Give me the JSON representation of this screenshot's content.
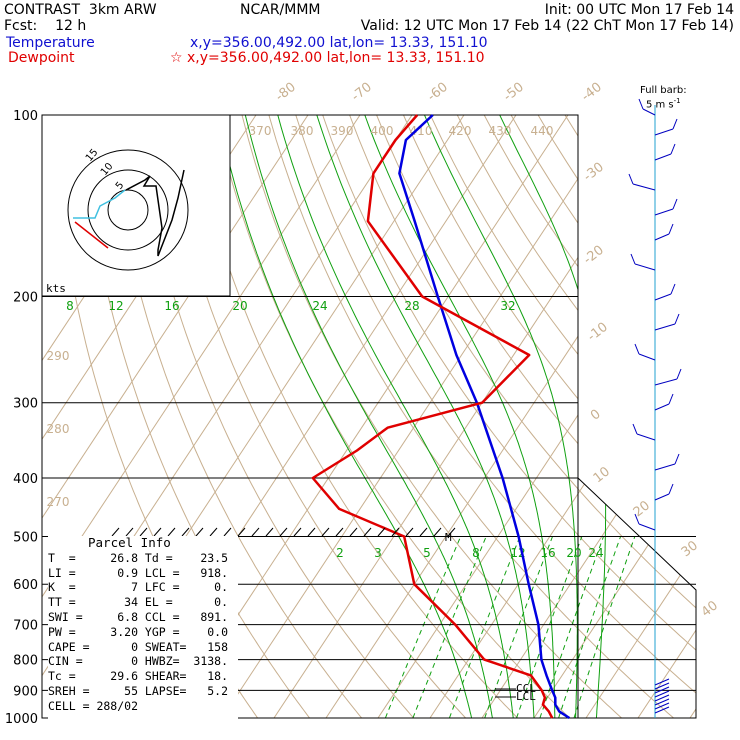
{
  "header": {
    "product": "CONTRAST",
    "model": "3km ARW",
    "org": "NCAR/MMM",
    "init": "Init: 00 UTC Mon 17 Feb 14",
    "fcst_label": "Fcst:",
    "fcst_value": "12 h",
    "valid": "Valid: 12 UTC Mon 17 Feb 14 (22 ChT Mon 17 Feb 14)",
    "temp_label": "Temperature",
    "temp_loc": "x,y=356.00,492.00    lat,lon= 13.33, 151.10",
    "dew_label": "Dewpoint",
    "dew_loc": "x,y=356.00,492.00    lat,lon= 13.33, 151.10"
  },
  "barb_legend": {
    "line1": "Full barb:",
    "line2": "5 m s"
  },
  "hodograph": {
    "units": "kts",
    "ring_labels": [
      "15",
      "10",
      "5"
    ]
  },
  "mixing_ratio_labels_top": [
    "8",
    "12",
    "16",
    "20",
    "24",
    "28",
    "32"
  ],
  "mixing_ratio_labels_mid": [
    "2",
    "3",
    "5",
    "8",
    "12",
    "16",
    "20",
    "24"
  ],
  "theta_labels": [
    "370",
    "380",
    "390",
    "400",
    "410",
    "420",
    "430",
    "440"
  ],
  "theta_left_labels": [
    "290",
    "280",
    "270"
  ],
  "isotherm_labels": [
    "-80",
    "-70",
    "-60",
    "-50",
    "-40",
    "-30",
    "-20",
    "-10",
    "0",
    "10",
    "20",
    "30",
    "40"
  ],
  "parcel": {
    "title": "Parcel Info",
    "rows": [
      [
        "T  =",
        "26.8",
        "Td =",
        "23.5"
      ],
      [
        "LI =",
        "0.9",
        "LCL =",
        "918."
      ],
      [
        "K  =",
        "7",
        "LFC =",
        "0."
      ],
      [
        "TT =",
        "34",
        "EL =",
        "0."
      ],
      [
        "SWI =",
        "6.8",
        "CCL =",
        "891."
      ],
      [
        "PW =",
        "3.20",
        "YGP =",
        "0.0"
      ],
      [
        "CAPE =",
        "0",
        "SWEAT=",
        "158"
      ],
      [
        "CIN =",
        "0",
        "HWBZ=",
        "3138."
      ],
      [
        "Tc =",
        "29.6",
        "SHEAR=",
        "18."
      ],
      [
        "SREH =",
        "55",
        "LAPSE=",
        "5.2"
      ],
      [
        "CELL = 288/02",
        "",
        "",
        ""
      ]
    ]
  },
  "markers": {
    "ccl": "CCL",
    "lcl": "LCL",
    "m": "M"
  },
  "colors": {
    "temperature": "#0000e0",
    "dewpoint": "#e00000",
    "mixing": "#10a010",
    "dry": "#c8b090",
    "hodo_cyan": "#40c0e0"
  },
  "chart_data": {
    "type": "line",
    "title": "",
    "ylabel": "",
    "y_scale": "log",
    "y_ticks": [
      100,
      200,
      300,
      400,
      500,
      600,
      700,
      800,
      900,
      1000
    ],
    "ylim": [
      1000,
      100
    ],
    "series": [
      {
        "name": "Temperature",
        "points": [
          [
            1000,
            26.8
          ],
          [
            975,
            24
          ],
          [
            950,
            22.4
          ],
          [
            925,
            21.5
          ],
          [
            900,
            20
          ],
          [
            850,
            17
          ],
          [
            800,
            14
          ],
          [
            700,
            9
          ],
          [
            600,
            2
          ],
          [
            500,
            -6
          ],
          [
            400,
            -16.5
          ],
          [
            300,
            -31
          ],
          [
            250,
            -41
          ],
          [
            200,
            -52
          ],
          [
            150,
            -66
          ],
          [
            125,
            -75
          ],
          [
            110,
            -78
          ],
          [
            100,
            -76
          ]
        ]
      },
      {
        "name": "Dewpoint",
        "points": [
          [
            1000,
            23.5
          ],
          [
            975,
            22
          ],
          [
            950,
            20
          ],
          [
            925,
            19.5
          ],
          [
            900,
            18
          ],
          [
            850,
            14
          ],
          [
            800,
            3
          ],
          [
            700,
            -7
          ],
          [
            600,
            -20
          ],
          [
            500,
            -28
          ],
          [
            450,
            -44
          ],
          [
            400,
            -53
          ],
          [
            360,
            -48
          ],
          [
            330,
            -45
          ],
          [
            300,
            -30
          ],
          [
            250,
            -27
          ],
          [
            200,
            -55
          ],
          [
            150,
            -75
          ],
          [
            125,
            -80
          ],
          [
            110,
            -80
          ],
          [
            100,
            -79
          ]
        ]
      }
    ]
  }
}
